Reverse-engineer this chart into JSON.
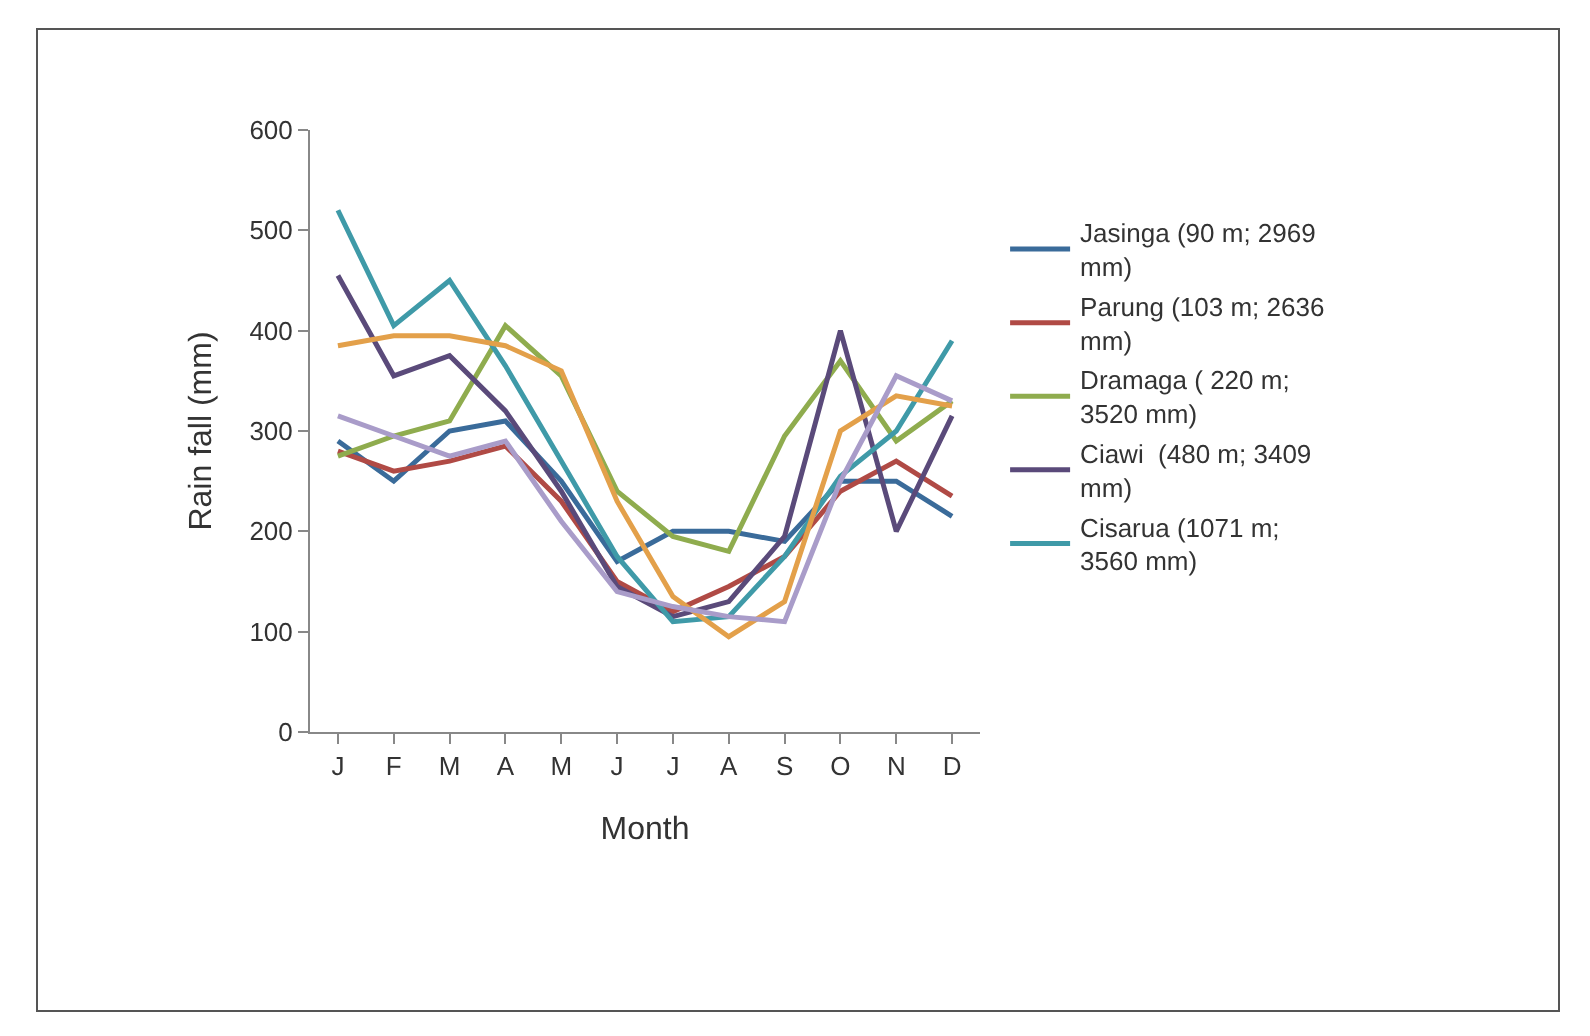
{
  "chart_data": {
    "type": "line",
    "xlabel": "Month",
    "ylabel": "Rain fall (mm)",
    "categories": [
      "J",
      "F",
      "M",
      "A",
      "M",
      "J",
      "J",
      "A",
      "S",
      "O",
      "N",
      "D"
    ],
    "ylim": [
      0,
      600
    ],
    "yticks": [
      0,
      100,
      200,
      300,
      400,
      500,
      600
    ],
    "grid": false,
    "legend": "right",
    "marker": "none",
    "line_style": "solid",
    "series": [
      {
        "name": "Jasinga (90 m; 2969 mm)",
        "color": "#3a6b9a",
        "values": [
          290,
          250,
          300,
          310,
          250,
          170,
          200,
          200,
          190,
          250,
          250,
          215
        ]
      },
      {
        "name": "Parung (103 m; 2636 mm)",
        "color": "#b04a45",
        "values": [
          280,
          260,
          270,
          285,
          230,
          150,
          120,
          145,
          175,
          240,
          270,
          235
        ]
      },
      {
        "name": "Dramaga ( 220 m; 3520 mm)",
        "color": "#8fac4e",
        "values": [
          275,
          295,
          310,
          405,
          355,
          240,
          195,
          180,
          295,
          370,
          290,
          330
        ]
      },
      {
        "name": "Ciawi  (480 m; 3409 mm)",
        "color": "#5a4a7a",
        "values": [
          455,
          355,
          375,
          320,
          240,
          145,
          115,
          130,
          195,
          400,
          200,
          315
        ]
      },
      {
        "name": "Cisarua (1071 m; 3560 mm)",
        "color": "#3f9aa8",
        "values": [
          520,
          405,
          450,
          365,
          270,
          175,
          110,
          115,
          175,
          255,
          300,
          390
        ]
      },
      {
        "color": "#e3a04a",
        "values": [
          385,
          395,
          395,
          385,
          360,
          230,
          135,
          95,
          130,
          300,
          335,
          325
        ]
      },
      {
        "color": "#a99cc9",
        "values": [
          315,
          295,
          275,
          290,
          210,
          140,
          125,
          115,
          110,
          250,
          355,
          330
        ]
      }
    ]
  }
}
